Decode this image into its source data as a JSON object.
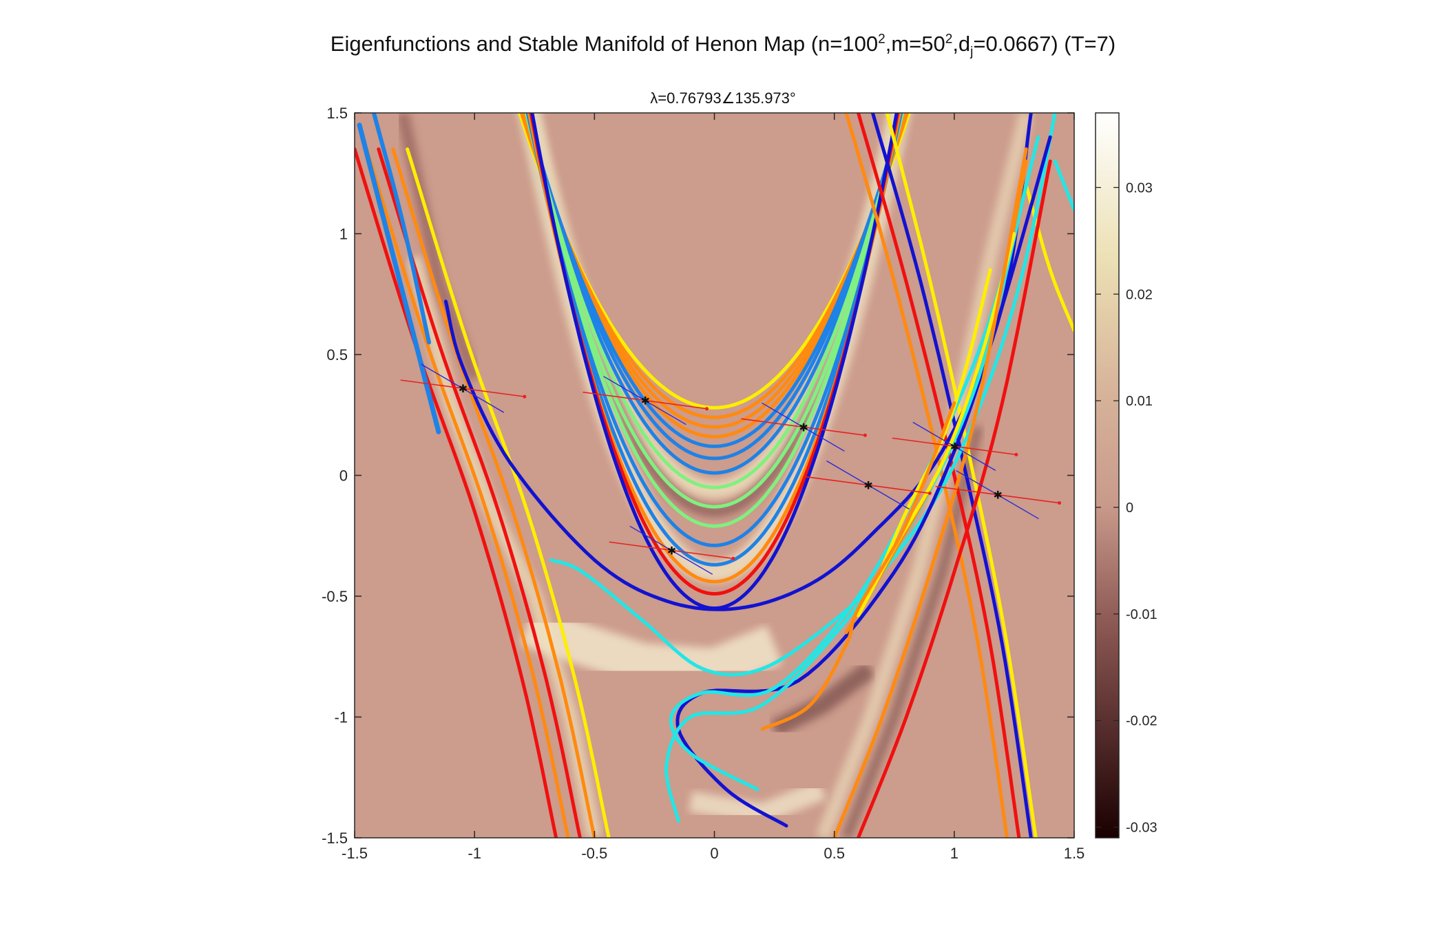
{
  "title": {
    "prefix": "Eigenfunctions and Stable Manifold of Henon Map (n=100",
    "sup1": "2",
    "mid1": ",m=50",
    "sup2": "2",
    "mid2": ",d",
    "sub1": "j",
    "suffix": "=0.0667) (T=7)"
  },
  "subtitle": "λ=0.76793∠135.973°",
  "colors": {
    "background": "#cc9c8c",
    "yellow": "#ffee00",
    "orange": "#ff8a10",
    "red": "#f01010",
    "green": "#80f080",
    "lightblue": "#1e82e6",
    "navy": "#1212d0",
    "cyan": "#22e6e6",
    "vector_red": "#e82020",
    "vector_blue": "#2a2ad8"
  },
  "chart_data": {
    "type": "heatmap",
    "xlim": [
      -1.5,
      1.5
    ],
    "ylim": [
      -1.5,
      1.5
    ],
    "xticks": [
      "-1.5",
      "-1",
      "-0.5",
      "0",
      "0.5",
      "1",
      "1.5"
    ],
    "yticks": [
      "1.5",
      "1",
      "0.5",
      "0",
      "-0.5",
      "-1",
      "-1.5"
    ],
    "colorbar": {
      "range": [
        -0.031,
        0.037
      ],
      "ticks": [
        "0.03",
        "0.02",
        "0.01",
        "0",
        "-0.01",
        "-0.02",
        "-0.03"
      ],
      "tick_values": [
        0.03,
        0.02,
        0.01,
        0,
        -0.01,
        -0.02,
        -0.03
      ]
    },
    "parabola_curves": [
      {
        "c": 0.28,
        "k": 1.85,
        "color": "yellow"
      },
      {
        "c": 0.24,
        "k": 1.95,
        "color": "orange"
      },
      {
        "c": 0.2,
        "k": 2.05,
        "color": "orange"
      },
      {
        "c": 0.16,
        "k": 2.15,
        "color": "orange"
      },
      {
        "c": 0.12,
        "k": 2.25,
        "color": "lightblue"
      },
      {
        "c": 0.07,
        "k": 2.35,
        "color": "lightblue"
      },
      {
        "c": 0.01,
        "k": 2.45,
        "color": "lightblue"
      },
      {
        "c": -0.05,
        "k": 2.55,
        "color": "green"
      },
      {
        "c": -0.13,
        "k": 2.65,
        "color": "green"
      },
      {
        "c": -0.21,
        "k": 2.8,
        "color": "green"
      },
      {
        "c": -0.29,
        "k": 2.95,
        "color": "lightblue"
      },
      {
        "c": -0.37,
        "k": 3.1,
        "color": "lightblue"
      },
      {
        "c": -0.44,
        "k": 3.25,
        "color": "orange"
      },
      {
        "c": -0.49,
        "k": 3.4,
        "color": "red"
      },
      {
        "c": -0.55,
        "k": 3.55,
        "color": "navy"
      }
    ],
    "outer_curves_right": [
      {
        "x": [
          0.55,
          0.75,
          0.95,
          1.1,
          1.22
        ],
        "y": [
          1.5,
          0.8,
          0.0,
          -0.7,
          -1.5
        ],
        "color": "orange"
      },
      {
        "x": [
          0.6,
          0.8,
          1.0,
          1.15,
          1.27
        ],
        "y": [
          1.5,
          0.8,
          0.0,
          -0.7,
          -1.5
        ],
        "color": "red"
      },
      {
        "x": [
          0.66,
          0.86,
          1.05,
          1.2,
          1.32
        ],
        "y": [
          1.5,
          0.8,
          0.0,
          -0.7,
          -1.5
        ],
        "color": "navy"
      }
    ],
    "left_band_curves": [
      {
        "dx": 0.0,
        "color": "red"
      },
      {
        "dx": 0.05,
        "color": "orange"
      },
      {
        "dx": 0.1,
        "color": "red"
      },
      {
        "dx": 0.16,
        "color": "orange"
      },
      {
        "dx": 0.22,
        "color": "yellow"
      }
    ],
    "inner_loops": [
      {
        "color": "navy",
        "x": [
          -1.12,
          -1.05,
          -0.85,
          -0.5,
          -0.2,
          0.1,
          0.4,
          0.65,
          0.95,
          1.2,
          1.32
        ],
        "y": [
          0.72,
          0.45,
          0.05,
          -0.35,
          -0.52,
          -0.55,
          -0.45,
          -0.25,
          0.1,
          0.7,
          1.5
        ]
      },
      {
        "color": "cyan",
        "x": [
          -0.68,
          -0.55,
          -0.3,
          -0.05,
          0.2,
          0.5,
          0.7,
          0.95,
          1.15,
          1.3,
          1.42
        ],
        "y": [
          -0.35,
          -0.4,
          -0.6,
          -0.8,
          -0.8,
          -0.6,
          -0.4,
          -0.05,
          0.4,
          0.9,
          1.5
        ]
      }
    ],
    "fixed_points": [
      {
        "x": -1.05,
        "y": 0.36
      },
      {
        "x": -0.29,
        "y": 0.31
      },
      {
        "x": 0.37,
        "y": 0.2
      },
      {
        "x": 1.0,
        "y": 0.12
      },
      {
        "x": 0.64,
        "y": -0.04
      },
      {
        "x": 1.18,
        "y": -0.08
      },
      {
        "x": -0.18,
        "y": -0.31
      }
    ]
  }
}
